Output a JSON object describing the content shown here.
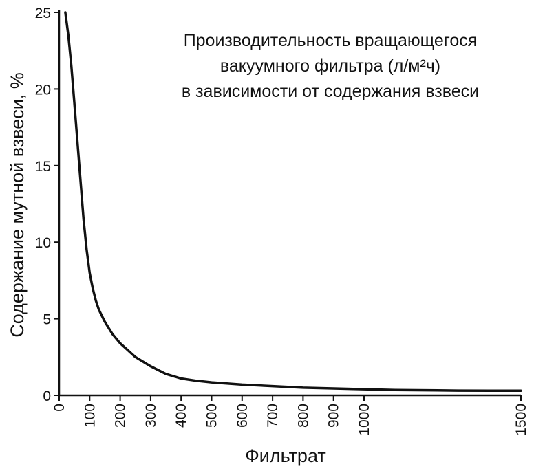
{
  "chart_data": {
    "type": "line",
    "title_lines": [
      "Производительность вращающегося",
      "вакуумного фильтра (л/м²ч)",
      "в зависимости от содержания взвеси"
    ],
    "xlabel": "Фильтрат",
    "ylabel": "Содержание мутной взвеси, %",
    "xlim": [
      0,
      1500
    ],
    "ylim": [
      0,
      25
    ],
    "x_ticks": [
      0,
      100,
      200,
      300,
      400,
      500,
      600,
      700,
      800,
      900,
      1000,
      1500
    ],
    "y_ticks": [
      0,
      5,
      10,
      15,
      20,
      25
    ],
    "grid": false,
    "legend": "none",
    "line_color": "#111111",
    "series": [
      {
        "x": [
          20,
          30,
          40,
          50,
          60,
          70,
          80,
          90,
          100,
          110,
          120,
          130,
          150,
          175,
          200,
          250,
          300,
          350,
          400,
          450,
          500,
          600,
          700,
          800,
          900,
          1000,
          1100,
          1200,
          1300,
          1400,
          1500
        ],
        "values": [
          25.0,
          23.5,
          21.5,
          19.0,
          16.5,
          14.0,
          11.5,
          9.5,
          8.0,
          7.0,
          6.2,
          5.6,
          4.8,
          4.0,
          3.4,
          2.5,
          1.9,
          1.4,
          1.1,
          0.95,
          0.85,
          0.7,
          0.6,
          0.5,
          0.45,
          0.4,
          0.35,
          0.33,
          0.31,
          0.3,
          0.3
        ]
      }
    ]
  }
}
